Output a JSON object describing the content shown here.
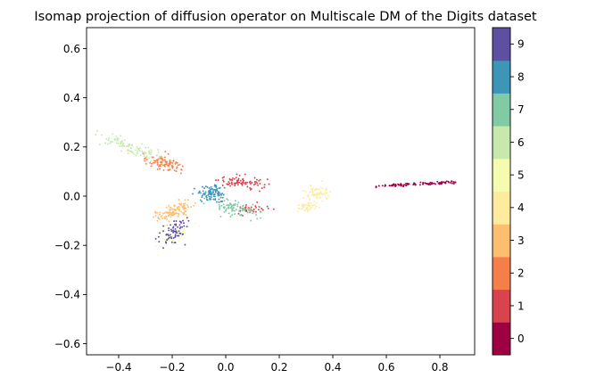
{
  "chart_data": {
    "type": "scatter",
    "title": "Isomap projection of diffusion operator on Multiscale DM of the Digits dataset",
    "xlabel": "",
    "ylabel": "",
    "xlim": [
      -0.52,
      0.93
    ],
    "ylim": [
      -0.645,
      0.685
    ],
    "x_ticks": [
      -0.4,
      -0.2,
      0.0,
      0.2,
      0.4,
      0.6,
      0.8
    ],
    "x_tick_labels": [
      "−0.4",
      "−0.2",
      "0.0",
      "0.2",
      "0.4",
      "0.6",
      "0.8"
    ],
    "y_ticks": [
      -0.6,
      -0.4,
      -0.2,
      0.0,
      0.2,
      0.4,
      0.6
    ],
    "y_tick_labels": [
      "−0.6",
      "−0.4",
      "−0.2",
      "0.0",
      "0.2",
      "0.4",
      "0.6"
    ],
    "grid": false,
    "colorbar": {
      "colormap": "Spectral (discrete, 10 levels)",
      "ticks": [
        "0",
        "1",
        "2",
        "3",
        "4",
        "5",
        "6",
        "7",
        "8",
        "9"
      ],
      "colors": [
        "#9e0142",
        "#d8434e",
        "#f67e4b",
        "#fdbf6f",
        "#feeb9e",
        "#f5fbaf",
        "#c7e9ad",
        "#80cba4",
        "#3d95b8",
        "#5e4fa2"
      ]
    },
    "series": [
      {
        "label": "0",
        "color": "#9e0142",
        "shape": "line",
        "x0": 0.56,
        "x1": 0.86,
        "y0": 0.04,
        "y1": 0.058,
        "spread": 0.003,
        "n": 95
      },
      {
        "label": "1",
        "color": "#d8434e",
        "shape": "blob",
        "cx": 0.06,
        "cy": 0.055,
        "sx": 0.04,
        "sy": 0.012,
        "rot": -0.1,
        "n": 80
      },
      {
        "label": "1",
        "color": "#d8434e",
        "shape": "blob",
        "cx": 0.1,
        "cy": -0.055,
        "sx": 0.03,
        "sy": 0.01,
        "rot": 0.0,
        "n": 35
      },
      {
        "label": "2",
        "color": "#f67e4b",
        "shape": "blob",
        "cx": -0.23,
        "cy": 0.135,
        "sx": 0.035,
        "sy": 0.012,
        "rot": -0.25,
        "n": 90
      },
      {
        "label": "3",
        "color": "#fdbf6f",
        "shape": "blob",
        "cx": -0.2,
        "cy": -0.065,
        "sx": 0.035,
        "sy": 0.013,
        "rot": 0.35,
        "n": 110
      },
      {
        "label": "4",
        "color": "#feeb9e",
        "shape": "blob",
        "cx": 0.34,
        "cy": 0.01,
        "sx": 0.025,
        "sy": 0.015,
        "rot": 0.2,
        "n": 70
      },
      {
        "label": "4",
        "color": "#feeb9e",
        "shape": "blob",
        "cx": 0.3,
        "cy": -0.045,
        "sx": 0.02,
        "sy": 0.01,
        "rot": 0.0,
        "n": 40
      },
      {
        "label": "5",
        "color": "#f5fbaf",
        "shape": "blob",
        "cx": -0.2,
        "cy": -0.17,
        "sx": 0.04,
        "sy": 0.015,
        "rot": 0.6,
        "n": 60
      },
      {
        "label": "6",
        "color": "#c7e9ad",
        "shape": "blob",
        "cx": -0.34,
        "cy": 0.19,
        "sx": 0.075,
        "sy": 0.012,
        "rot": -0.35,
        "n": 110
      },
      {
        "label": "7",
        "color": "#80cba4",
        "shape": "blob",
        "cx": 0.04,
        "cy": -0.05,
        "sx": 0.045,
        "sy": 0.013,
        "rot": -0.2,
        "n": 90
      },
      {
        "label": "8",
        "color": "#3d95b8",
        "shape": "blob",
        "cx": -0.05,
        "cy": 0.01,
        "sx": 0.03,
        "sy": 0.017,
        "rot": 0.0,
        "n": 100
      },
      {
        "label": "9",
        "color": "#5e4fa2",
        "shape": "blob",
        "cx": -0.19,
        "cy": -0.145,
        "sx": 0.03,
        "sy": 0.02,
        "rot": 0.7,
        "n": 70
      }
    ]
  }
}
